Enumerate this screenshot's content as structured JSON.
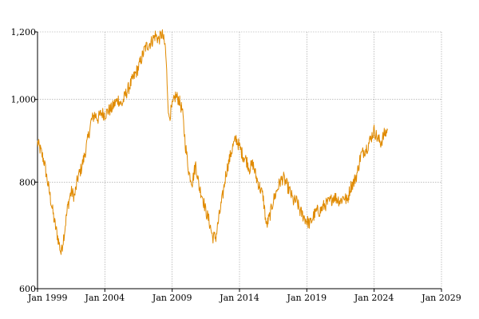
{
  "chart_data": {
    "type": "line",
    "title": "",
    "xlabel": "",
    "ylabel": "",
    "y_scale": "log",
    "ylim": [
      600,
      1200
    ],
    "xlim": [
      "1999-01-01",
      "2029-01-01"
    ],
    "grid": true,
    "line_color": "#e08a00",
    "y_ticks": [
      {
        "value": 600,
        "label": "600"
      },
      {
        "value": 800,
        "label": "800"
      },
      {
        "value": 1000,
        "label": "1,000"
      },
      {
        "value": 1200,
        "label": "1,200"
      }
    ],
    "x_ticks": [
      {
        "date": "1999-01-01",
        "label": "Jan 1999"
      },
      {
        "date": "2004-01-01",
        "label": "Jan 2004"
      },
      {
        "date": "2009-01-01",
        "label": "Jan 2009"
      },
      {
        "date": "2014-01-01",
        "label": "Jan 2014"
      },
      {
        "date": "2019-01-01",
        "label": "Jan 2019"
      },
      {
        "date": "2024-01-01",
        "label": "Jan 2024"
      },
      {
        "date": "2029-01-01",
        "label": "Jan 2029"
      }
    ],
    "series": [
      {
        "values": [
          [
            "1999-01-01",
            890
          ],
          [
            "1999-04-01",
            870
          ],
          [
            "1999-07-01",
            845
          ],
          [
            "1999-10-01",
            800
          ],
          [
            "2000-01-01",
            760
          ],
          [
            "2000-04-01",
            720
          ],
          [
            "2000-07-01",
            690
          ],
          [
            "2000-10-01",
            660
          ],
          [
            "2001-01-01",
            700
          ],
          [
            "2001-04-01",
            750
          ],
          [
            "2001-07-01",
            780
          ],
          [
            "2001-10-01",
            770
          ],
          [
            "2002-01-01",
            810
          ],
          [
            "2002-04-01",
            830
          ],
          [
            "2002-07-01",
            860
          ],
          [
            "2002-10-01",
            900
          ],
          [
            "2003-01-01",
            945
          ],
          [
            "2003-04-01",
            960
          ],
          [
            "2003-07-01",
            950
          ],
          [
            "2003-10-01",
            965
          ],
          [
            "2004-01-01",
            960
          ],
          [
            "2004-04-01",
            970
          ],
          [
            "2004-07-01",
            975
          ],
          [
            "2004-10-01",
            990
          ],
          [
            "2005-01-01",
            1000
          ],
          [
            "2005-04-01",
            985
          ],
          [
            "2005-07-01",
            1010
          ],
          [
            "2005-10-01",
            1030
          ],
          [
            "2006-01-01",
            1050
          ],
          [
            "2006-04-01",
            1070
          ],
          [
            "2006-07-01",
            1090
          ],
          [
            "2006-10-01",
            1120
          ],
          [
            "2007-01-01",
            1150
          ],
          [
            "2007-04-01",
            1160
          ],
          [
            "2007-07-01",
            1170
          ],
          [
            "2007-10-01",
            1190
          ],
          [
            "2008-01-01",
            1175
          ],
          [
            "2008-04-01",
            1195
          ],
          [
            "2008-07-01",
            1150
          ],
          [
            "2008-10-01",
            950
          ],
          [
            "2009-01-01",
            980
          ],
          [
            "2009-04-01",
            1010
          ],
          [
            "2009-07-01",
            1000
          ],
          [
            "2009-10-01",
            970
          ],
          [
            "2010-01-01",
            880
          ],
          [
            "2010-04-01",
            820
          ],
          [
            "2010-07-01",
            800
          ],
          [
            "2010-10-01",
            840
          ],
          [
            "2011-01-01",
            790
          ],
          [
            "2011-04-01",
            770
          ],
          [
            "2011-07-01",
            740
          ],
          [
            "2011-10-01",
            720
          ],
          [
            "2012-01-01",
            690
          ],
          [
            "2012-04-01",
            690
          ],
          [
            "2012-07-01",
            730
          ],
          [
            "2012-10-01",
            770
          ],
          [
            "2013-01-01",
            820
          ],
          [
            "2013-04-01",
            850
          ],
          [
            "2013-07-01",
            880
          ],
          [
            "2013-10-01",
            900
          ],
          [
            "2014-01-01",
            880
          ],
          [
            "2014-04-01",
            860
          ],
          [
            "2014-07-01",
            850
          ],
          [
            "2014-10-01",
            830
          ],
          [
            "2015-01-01",
            840
          ],
          [
            "2015-04-01",
            810
          ],
          [
            "2015-07-01",
            790
          ],
          [
            "2015-10-01",
            770
          ],
          [
            "2016-01-01",
            710
          ],
          [
            "2016-04-01",
            730
          ],
          [
            "2016-07-01",
            760
          ],
          [
            "2016-10-01",
            780
          ],
          [
            "2017-01-01",
            800
          ],
          [
            "2017-04-01",
            810
          ],
          [
            "2017-07-01",
            795
          ],
          [
            "2017-10-01",
            780
          ],
          [
            "2018-01-01",
            760
          ],
          [
            "2018-04-01",
            760
          ],
          [
            "2018-07-01",
            740
          ],
          [
            "2018-10-01",
            730
          ],
          [
            "2019-01-01",
            720
          ],
          [
            "2019-04-01",
            715
          ],
          [
            "2019-07-01",
            730
          ],
          [
            "2019-10-01",
            740
          ],
          [
            "2020-01-01",
            740
          ],
          [
            "2020-04-01",
            750
          ],
          [
            "2020-07-01",
            755
          ],
          [
            "2020-10-01",
            760
          ],
          [
            "2021-01-01",
            770
          ],
          [
            "2021-04-01",
            765
          ],
          [
            "2021-07-01",
            760
          ],
          [
            "2021-10-01",
            770
          ],
          [
            "2022-01-01",
            760
          ],
          [
            "2022-04-01",
            790
          ],
          [
            "2022-07-01",
            800
          ],
          [
            "2022-10-01",
            820
          ],
          [
            "2023-01-01",
            860
          ],
          [
            "2023-04-01",
            870
          ],
          [
            "2023-07-01",
            880
          ],
          [
            "2023-10-01",
            900
          ],
          [
            "2024-01-01",
            920
          ],
          [
            "2024-04-01",
            900
          ],
          [
            "2024-07-01",
            890
          ],
          [
            "2024-10-01",
            910
          ],
          [
            "2025-01-01",
            920
          ]
        ]
      }
    ]
  }
}
